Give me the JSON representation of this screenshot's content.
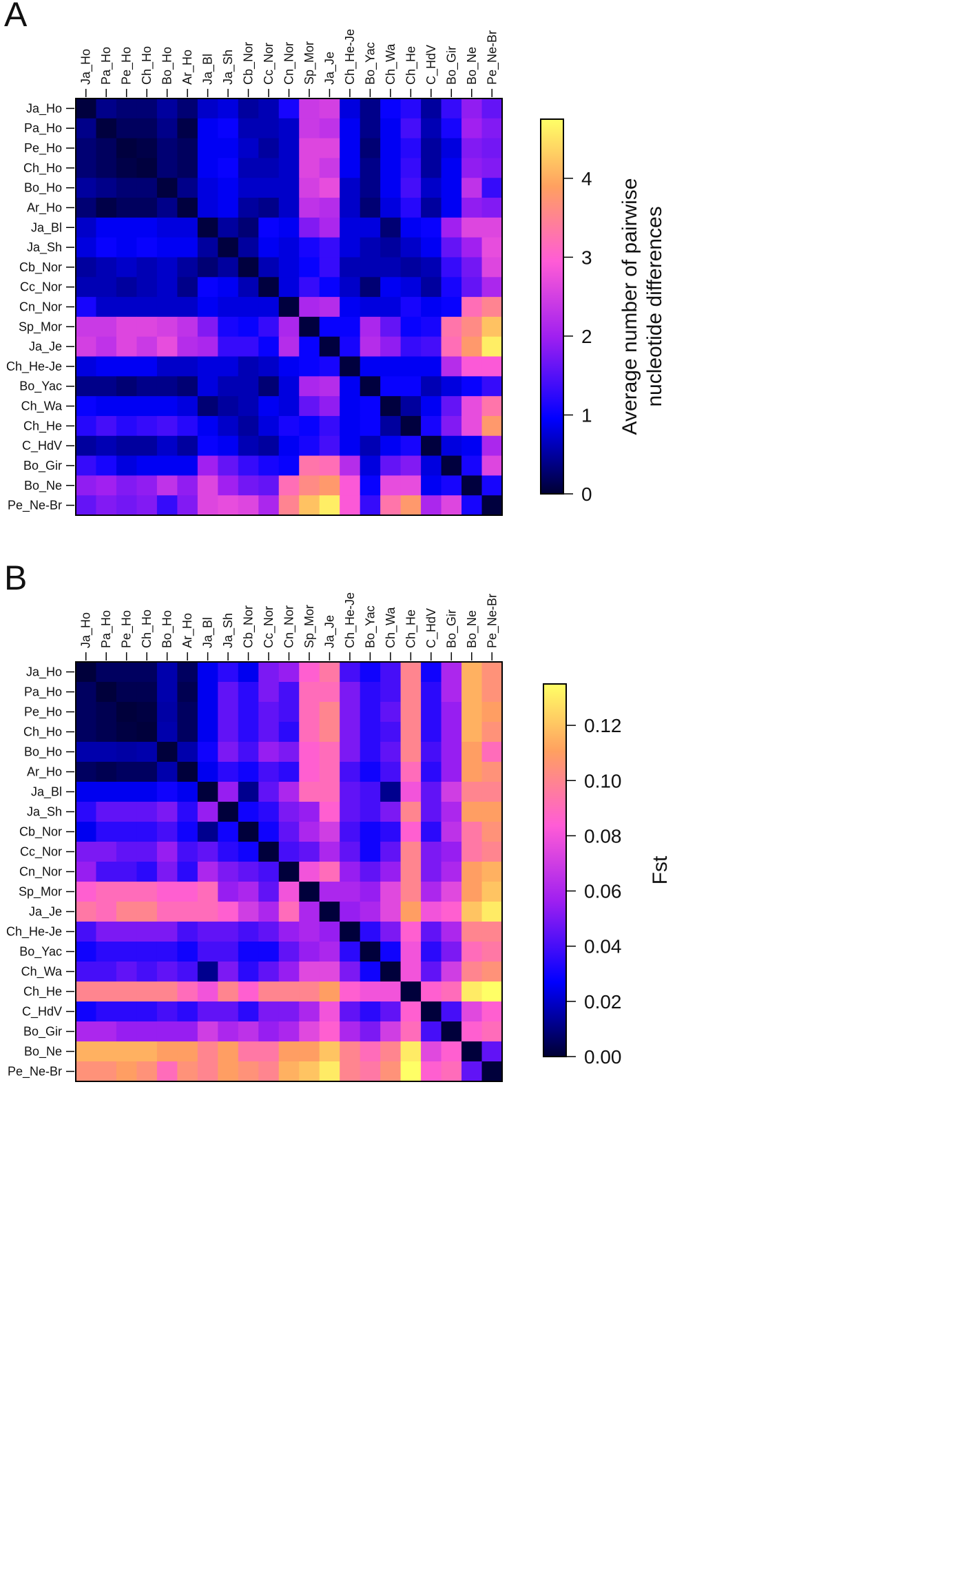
{
  "colors": {
    "scale": [
      "#000033",
      "#0000ff",
      "#a020f0",
      "#ff5cd6",
      "#ffa060",
      "#ffff66"
    ],
    "border": "#000000",
    "text": "#111111"
  },
  "chart_data": [
    {
      "type": "heatmap",
      "panel_label": "A",
      "legend_title_lines": [
        "Average number of pairwise",
        "nucleotide differences"
      ],
      "xlabels": [
        "Ja_Ho",
        "Pa_Ho",
        "Pe_Ho",
        "Ch_Ho",
        "Bo_Ho",
        "Ar_Ho",
        "Ja_Bl",
        "Ja_Sh",
        "Cb_Nor",
        "Cc_Nor",
        "Cn_Nor",
        "Sp_Mor",
        "Ja_Je",
        "Ch_He-Je",
        "Bo_Yac",
        "Ch_Wa",
        "Ch_He",
        "C_HdV",
        "Bo_Gir",
        "Bo_Ne",
        "Pe_Ne-Br"
      ],
      "ylabels": [
        "Ja_Ho",
        "Pa_Ho",
        "Pe_Ho",
        "Ch_Ho",
        "Bo_Ho",
        "Ar_Ho",
        "Ja_Bl",
        "Ja_Sh",
        "Cb_Nor",
        "Cc_Nor",
        "Cn_Nor",
        "Sp_Mor",
        "Ja_Je",
        "Ch_He-Je",
        "Bo_Yac",
        "Ch_Wa",
        "Ch_He",
        "C_HdV",
        "Bo_Gir",
        "Bo_Ne",
        "Pe_Ne-Br"
      ],
      "range": [
        0,
        4.75
      ],
      "legend_ticks": [
        0,
        1,
        2,
        3,
        4
      ],
      "legend_tick_labels": [
        "0",
        "1",
        "2",
        "3",
        "4"
      ],
      "values": [
        [
          0.05,
          0.4,
          0.3,
          0.3,
          0.5,
          0.3,
          0.7,
          0.8,
          0.5,
          0.6,
          1.1,
          2.4,
          2.5,
          0.8,
          0.4,
          1.0,
          1.2,
          0.5,
          1.3,
          1.9,
          1.6
        ],
        [
          0.4,
          0.05,
          0.2,
          0.2,
          0.4,
          0.1,
          0.9,
          1.0,
          0.6,
          0.6,
          0.7,
          2.4,
          2.3,
          0.9,
          0.4,
          0.9,
          1.4,
          0.6,
          1.1,
          2.0,
          1.8
        ],
        [
          0.3,
          0.2,
          0.05,
          0.1,
          0.3,
          0.2,
          0.9,
          0.9,
          0.7,
          0.5,
          0.7,
          2.6,
          2.6,
          0.9,
          0.3,
          0.9,
          1.2,
          0.5,
          0.8,
          1.8,
          1.7
        ],
        [
          0.3,
          0.2,
          0.1,
          0.05,
          0.3,
          0.2,
          0.9,
          1.0,
          0.6,
          0.6,
          0.7,
          2.6,
          2.4,
          0.9,
          0.4,
          0.9,
          1.3,
          0.5,
          0.9,
          1.9,
          1.8
        ],
        [
          0.5,
          0.4,
          0.3,
          0.3,
          0.05,
          0.4,
          0.8,
          0.9,
          0.7,
          0.7,
          0.7,
          2.5,
          2.7,
          0.7,
          0.4,
          0.9,
          1.4,
          0.7,
          0.9,
          2.3,
          1.3
        ],
        [
          0.3,
          0.1,
          0.2,
          0.2,
          0.4,
          0.05,
          0.8,
          0.9,
          0.5,
          0.4,
          0.7,
          2.3,
          2.2,
          0.7,
          0.3,
          0.8,
          1.2,
          0.5,
          0.9,
          1.9,
          1.8
        ],
        [
          0.7,
          0.9,
          0.9,
          0.9,
          0.8,
          0.8,
          0.05,
          0.5,
          0.3,
          1.0,
          0.9,
          1.8,
          2.1,
          0.8,
          0.8,
          0.3,
          0.9,
          1.0,
          2.0,
          2.6,
          2.6
        ],
        [
          0.8,
          1.0,
          0.9,
          1.0,
          0.9,
          0.9,
          0.5,
          0.05,
          0.5,
          0.9,
          0.8,
          1.1,
          1.3,
          0.8,
          0.6,
          0.5,
          0.7,
          0.9,
          1.6,
          2.0,
          2.7
        ],
        [
          0.5,
          0.6,
          0.7,
          0.6,
          0.7,
          0.5,
          0.3,
          0.5,
          0.05,
          0.6,
          0.8,
          1.0,
          1.3,
          0.6,
          0.6,
          0.6,
          0.5,
          0.6,
          1.3,
          1.7,
          2.6
        ],
        [
          0.6,
          0.6,
          0.5,
          0.6,
          0.7,
          0.4,
          1.0,
          0.9,
          0.6,
          0.05,
          0.8,
          1.3,
          1.0,
          0.7,
          0.3,
          0.9,
          0.8,
          0.5,
          1.1,
          1.6,
          2.1
        ],
        [
          1.1,
          0.7,
          0.7,
          0.7,
          0.7,
          0.7,
          0.9,
          0.8,
          0.8,
          0.8,
          0.05,
          2.1,
          2.2,
          0.9,
          0.8,
          0.8,
          1.1,
          0.9,
          1.0,
          3.2,
          3.5
        ],
        [
          2.4,
          2.4,
          2.6,
          2.6,
          2.5,
          2.3,
          1.8,
          1.1,
          1.0,
          1.3,
          2.1,
          0.05,
          1.0,
          1.0,
          2.1,
          1.6,
          1.0,
          1.1,
          3.3,
          3.6,
          4.2
        ],
        [
          2.5,
          2.3,
          2.6,
          2.4,
          2.7,
          2.2,
          2.1,
          1.3,
          1.3,
          1.0,
          2.2,
          1.0,
          0.05,
          1.1,
          2.2,
          1.9,
          1.3,
          1.4,
          3.2,
          3.8,
          4.6
        ],
        [
          0.8,
          0.9,
          0.9,
          0.9,
          0.7,
          0.7,
          0.8,
          0.8,
          0.6,
          0.7,
          0.9,
          1.0,
          1.1,
          0.05,
          0.9,
          0.9,
          0.9,
          0.9,
          2.2,
          2.9,
          2.9
        ],
        [
          0.4,
          0.4,
          0.3,
          0.4,
          0.4,
          0.3,
          0.8,
          0.6,
          0.6,
          0.3,
          0.8,
          2.1,
          2.2,
          0.9,
          0.05,
          1.0,
          1.0,
          0.6,
          0.8,
          1.0,
          1.3
        ],
        [
          1.0,
          0.9,
          0.9,
          0.9,
          0.9,
          0.8,
          0.3,
          0.5,
          0.6,
          0.9,
          0.8,
          1.6,
          1.9,
          0.9,
          1.0,
          0.05,
          0.5,
          0.9,
          1.6,
          2.7,
          3.3
        ],
        [
          1.2,
          1.4,
          1.2,
          1.3,
          1.4,
          1.2,
          0.9,
          0.7,
          0.5,
          0.8,
          1.1,
          1.0,
          1.3,
          0.9,
          1.0,
          0.5,
          0.05,
          1.1,
          1.8,
          2.7,
          3.8
        ],
        [
          0.5,
          0.6,
          0.5,
          0.5,
          0.7,
          0.5,
          1.0,
          0.9,
          0.6,
          0.5,
          0.9,
          1.1,
          1.4,
          0.9,
          0.6,
          0.9,
          1.1,
          0.05,
          0.8,
          0.9,
          2.1
        ],
        [
          1.3,
          1.1,
          0.8,
          0.9,
          0.9,
          0.9,
          2.0,
          1.6,
          1.3,
          1.1,
          1.0,
          3.3,
          3.2,
          2.2,
          0.8,
          1.6,
          1.8,
          0.8,
          0.05,
          1.1,
          2.6
        ],
        [
          1.9,
          2.0,
          1.8,
          1.9,
          2.3,
          1.9,
          2.6,
          2.0,
          1.7,
          1.6,
          3.2,
          3.6,
          3.8,
          2.9,
          1.0,
          2.7,
          2.7,
          0.9,
          1.1,
          0.05,
          1.1
        ],
        [
          1.6,
          1.8,
          1.7,
          1.8,
          1.3,
          1.8,
          2.6,
          2.7,
          2.6,
          2.1,
          3.5,
          4.2,
          4.6,
          2.9,
          1.3,
          3.3,
          3.8,
          2.1,
          2.6,
          1.1,
          0.05
        ]
      ]
    },
    {
      "type": "heatmap",
      "panel_label": "B",
      "legend_title_lines": [
        "Fst"
      ],
      "xlabels": [
        "Ja_Ho",
        "Pa_Ho",
        "Pe_Ho",
        "Ch_Ho",
        "Bo_Ho",
        "Ar_Ho",
        "Ja_Bl",
        "Ja_Sh",
        "Cb_Nor",
        "Cc_Nor",
        "Cn_Nor",
        "Sp_Mor",
        "Ja_Je",
        "Ch_He-Je",
        "Bo_Yac",
        "Ch_Wa",
        "Ch_He",
        "C_HdV",
        "Bo_Gir",
        "Bo_Ne",
        "Pe_Ne-Br"
      ],
      "ylabels": [
        "Ja_Ho",
        "Pa_Ho",
        "Pe_Ho",
        "Ch_Ho",
        "Bo_Ho",
        "Ar_Ho",
        "Ja_Bl",
        "Ja_Sh",
        "Cb_Nor",
        "Cc_Nor",
        "Cn_Nor",
        "Sp_Mor",
        "Ja_Je",
        "Ch_He-Je",
        "Bo_Yac",
        "Ch_Wa",
        "Ch_He",
        "C_HdV",
        "Bo_Gir",
        "Bo_Ne",
        "Pe_Ne-Br"
      ],
      "range": [
        0,
        0.135
      ],
      "legend_ticks": [
        0,
        0.02,
        0.04,
        0.06,
        0.08,
        0.1,
        0.12
      ],
      "legend_tick_labels": [
        "0.00",
        "0.02",
        "0.04",
        "0.06",
        "0.08",
        "0.10",
        "0.12"
      ],
      "values": [
        [
          0.001,
          0.006,
          0.006,
          0.006,
          0.016,
          0.006,
          0.025,
          0.035,
          0.025,
          0.05,
          0.055,
          0.085,
          0.095,
          0.04,
          0.03,
          0.04,
          0.1,
          0.03,
          0.06,
          0.115,
          0.105
        ],
        [
          0.006,
          0.001,
          0.004,
          0.004,
          0.016,
          0.004,
          0.025,
          0.045,
          0.035,
          0.05,
          0.04,
          0.09,
          0.09,
          0.05,
          0.035,
          0.04,
          0.1,
          0.035,
          0.06,
          0.115,
          0.105
        ],
        [
          0.006,
          0.004,
          0.001,
          0.002,
          0.015,
          0.006,
          0.025,
          0.045,
          0.035,
          0.045,
          0.04,
          0.09,
          0.1,
          0.05,
          0.035,
          0.045,
          0.1,
          0.035,
          0.055,
          0.115,
          0.11
        ],
        [
          0.006,
          0.004,
          0.002,
          0.001,
          0.016,
          0.006,
          0.025,
          0.045,
          0.035,
          0.045,
          0.035,
          0.09,
          0.1,
          0.05,
          0.035,
          0.04,
          0.1,
          0.035,
          0.055,
          0.115,
          0.105
        ],
        [
          0.016,
          0.016,
          0.015,
          0.016,
          0.001,
          0.016,
          0.03,
          0.05,
          0.04,
          0.055,
          0.05,
          0.085,
          0.09,
          0.05,
          0.035,
          0.045,
          0.1,
          0.04,
          0.055,
          0.11,
          0.09
        ],
        [
          0.006,
          0.004,
          0.006,
          0.006,
          0.016,
          0.001,
          0.025,
          0.035,
          0.03,
          0.04,
          0.035,
          0.085,
          0.09,
          0.04,
          0.03,
          0.04,
          0.09,
          0.035,
          0.055,
          0.11,
          0.105
        ],
        [
          0.025,
          0.025,
          0.025,
          0.025,
          0.03,
          0.025,
          0.001,
          0.055,
          0.012,
          0.045,
          0.06,
          0.09,
          0.09,
          0.045,
          0.04,
          0.012,
          0.08,
          0.045,
          0.07,
          0.1,
          0.1
        ],
        [
          0.035,
          0.045,
          0.045,
          0.045,
          0.05,
          0.035,
          0.055,
          0.001,
          0.03,
          0.035,
          0.05,
          0.055,
          0.085,
          0.045,
          0.04,
          0.05,
          0.1,
          0.045,
          0.06,
          0.11,
          0.11
        ],
        [
          0.025,
          0.035,
          0.035,
          0.035,
          0.04,
          0.03,
          0.012,
          0.03,
          0.001,
          0.03,
          0.045,
          0.06,
          0.07,
          0.04,
          0.03,
          0.035,
          0.085,
          0.035,
          0.065,
          0.095,
          0.105
        ],
        [
          0.05,
          0.05,
          0.045,
          0.045,
          0.055,
          0.04,
          0.045,
          0.035,
          0.03,
          0.001,
          0.04,
          0.045,
          0.06,
          0.045,
          0.03,
          0.045,
          0.1,
          0.05,
          0.055,
          0.095,
          0.1
        ],
        [
          0.055,
          0.04,
          0.04,
          0.035,
          0.05,
          0.035,
          0.06,
          0.05,
          0.045,
          0.04,
          0.001,
          0.08,
          0.09,
          0.055,
          0.045,
          0.055,
          0.1,
          0.05,
          0.06,
          0.11,
          0.115
        ],
        [
          0.085,
          0.09,
          0.09,
          0.09,
          0.085,
          0.085,
          0.09,
          0.055,
          0.06,
          0.045,
          0.08,
          0.001,
          0.06,
          0.06,
          0.055,
          0.075,
          0.1,
          0.06,
          0.075,
          0.11,
          0.12
        ],
        [
          0.095,
          0.09,
          0.1,
          0.1,
          0.09,
          0.09,
          0.09,
          0.085,
          0.07,
          0.06,
          0.09,
          0.06,
          0.001,
          0.055,
          0.06,
          0.075,
          0.11,
          0.08,
          0.085,
          0.12,
          0.13
        ],
        [
          0.04,
          0.05,
          0.05,
          0.05,
          0.05,
          0.04,
          0.045,
          0.045,
          0.04,
          0.045,
          0.055,
          0.06,
          0.055,
          0.001,
          0.035,
          0.05,
          0.085,
          0.045,
          0.06,
          0.1,
          0.1
        ],
        [
          0.03,
          0.035,
          0.035,
          0.035,
          0.035,
          0.03,
          0.04,
          0.04,
          0.03,
          0.03,
          0.045,
          0.055,
          0.06,
          0.035,
          0.001,
          0.03,
          0.08,
          0.035,
          0.05,
          0.09,
          0.095
        ],
        [
          0.04,
          0.04,
          0.045,
          0.04,
          0.045,
          0.04,
          0.012,
          0.05,
          0.035,
          0.045,
          0.055,
          0.075,
          0.075,
          0.05,
          0.03,
          0.001,
          0.08,
          0.045,
          0.07,
          0.1,
          0.105
        ],
        [
          0.1,
          0.1,
          0.1,
          0.1,
          0.1,
          0.09,
          0.08,
          0.1,
          0.085,
          0.1,
          0.1,
          0.1,
          0.11,
          0.085,
          0.08,
          0.08,
          0.001,
          0.085,
          0.09,
          0.13,
          0.135
        ],
        [
          0.03,
          0.035,
          0.035,
          0.035,
          0.04,
          0.035,
          0.045,
          0.045,
          0.035,
          0.05,
          0.05,
          0.06,
          0.08,
          0.045,
          0.035,
          0.045,
          0.085,
          0.001,
          0.04,
          0.075,
          0.085
        ],
        [
          0.06,
          0.06,
          0.055,
          0.055,
          0.055,
          0.055,
          0.07,
          0.06,
          0.065,
          0.055,
          0.06,
          0.075,
          0.085,
          0.06,
          0.05,
          0.07,
          0.09,
          0.04,
          0.001,
          0.085,
          0.09
        ],
        [
          0.115,
          0.115,
          0.115,
          0.115,
          0.11,
          0.11,
          0.1,
          0.11,
          0.095,
          0.095,
          0.11,
          0.11,
          0.12,
          0.1,
          0.09,
          0.1,
          0.13,
          0.075,
          0.085,
          0.001,
          0.045
        ],
        [
          0.105,
          0.105,
          0.11,
          0.105,
          0.09,
          0.105,
          0.1,
          0.11,
          0.105,
          0.1,
          0.115,
          0.12,
          0.13,
          0.1,
          0.095,
          0.105,
          0.135,
          0.085,
          0.09,
          0.045,
          0.001
        ]
      ]
    }
  ]
}
